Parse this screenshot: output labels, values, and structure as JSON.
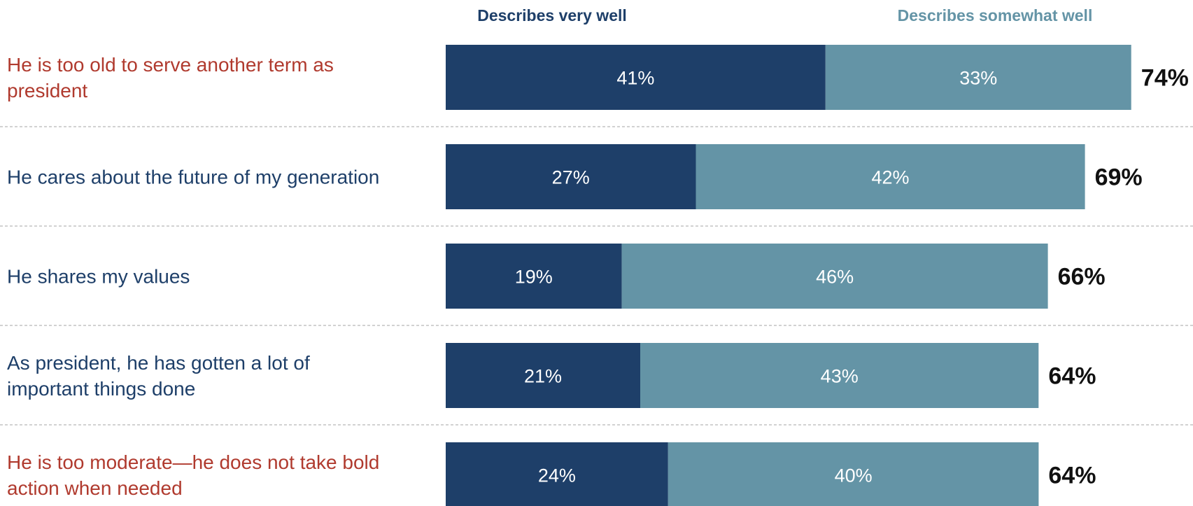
{
  "chart_data": {
    "type": "bar",
    "orientation": "horizontal",
    "stacked": true,
    "legend": {
      "placement": "top",
      "items": [
        {
          "name": "Describes very well",
          "color": "#1e3f69"
        },
        {
          "name": "Describes somewhat well",
          "color": "#6494a6"
        }
      ]
    },
    "categories": [
      {
        "lines": [
          "He is too old to serve another term as",
          "president"
        ],
        "color": "#b03a2e"
      },
      {
        "lines": [
          "He cares about the future of my generation"
        ],
        "color": "#1e3f69"
      },
      {
        "lines": [
          "He shares my values"
        ],
        "color": "#1e3f69"
      },
      {
        "lines": [
          "As president, he has gotten a lot of",
          "important things done"
        ],
        "color": "#1e3f69"
      },
      {
        "lines": [
          "He is too moderate—he does not take bold",
          "action when needed"
        ],
        "color": "#b03a2e"
      }
    ],
    "series": [
      {
        "name": "Describes very well",
        "values": [
          41,
          27,
          19,
          21,
          24
        ],
        "labels": [
          "41%",
          "27%",
          "19%",
          "21%",
          "24%"
        ]
      },
      {
        "name": "Describes somewhat well",
        "values": [
          33,
          42,
          46,
          43,
          40
        ],
        "labels": [
          "33%",
          "42%",
          "46%",
          "43%",
          "40%"
        ]
      }
    ],
    "totals": {
      "values": [
        74,
        69,
        66,
        64,
        64
      ],
      "labels": [
        "74%",
        "69%",
        "66%",
        "64%",
        "64%"
      ]
    },
    "xlim": [
      0,
      74
    ],
    "grid": false,
    "row_separators": true
  }
}
